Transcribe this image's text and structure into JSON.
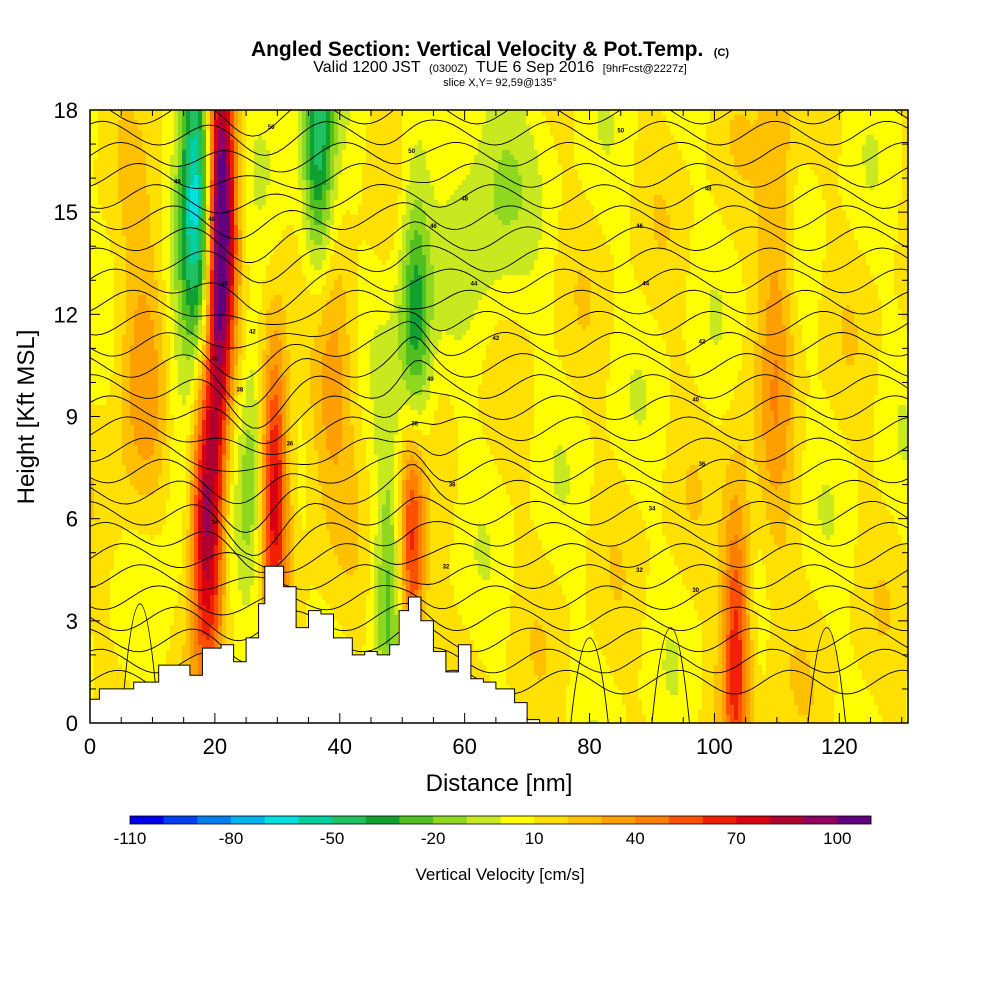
{
  "header": {
    "title": "Angled Section: Vertical Velocity & Pot.Temp.",
    "title_units": "(C)",
    "valid_prefix": "Valid 1200 JST",
    "valid_utc": "(0300Z)",
    "valid_date": "TUE 6 Sep 2016",
    "forecast": "[9hrFcst@2227z]",
    "slice": "slice X,Y= 92,59@135°"
  },
  "chart_data": {
    "type": "heatmap",
    "xlabel": "Distance [nm]",
    "ylabel": "Height [Kft MSL]",
    "xlim": [
      0,
      131
    ],
    "ylim": [
      0,
      18
    ],
    "x_ticks": [
      0,
      20,
      40,
      60,
      80,
      100,
      120
    ],
    "y_ticks": [
      0,
      3,
      6,
      9,
      12,
      15,
      18
    ],
    "colorbar": {
      "label": "Vertical Velocity [cm/s]",
      "range": [
        -110,
        110
      ],
      "step": 10,
      "tick_labels": [
        -110,
        -80,
        -50,
        -20,
        10,
        40,
        70,
        100
      ],
      "colors": [
        "#0000f0",
        "#0040f0",
        "#0080f0",
        "#00b4f0",
        "#00e0e0",
        "#00d0a0",
        "#20c060",
        "#10a030",
        "#50c020",
        "#90d820",
        "#c8e820",
        "#ffff00",
        "#ffe000",
        "#ffc000",
        "#ffa000",
        "#ff8000",
        "#ff5000",
        "#f02000",
        "#d80010",
        "#b00030",
        "#900060",
        "#600080"
      ]
    },
    "updrafts": [
      {
        "x": 18.5,
        "y": 6,
        "value": 80
      },
      {
        "x": 21.5,
        "y": 15,
        "value": 75
      },
      {
        "x": 29.5,
        "y": 7,
        "value": 70
      },
      {
        "x": 51.5,
        "y": 5.5,
        "value": 70
      },
      {
        "x": 103.5,
        "y": 2.5,
        "value": 60
      }
    ],
    "downdrafts": [
      {
        "x": 17,
        "y": 16,
        "value": -70
      },
      {
        "x": 36.5,
        "y": 17,
        "value": -55
      },
      {
        "x": 52,
        "y": 11,
        "value": -55
      },
      {
        "x": 26,
        "y": 7.5,
        "value": -30
      },
      {
        "x": 48,
        "y": 4,
        "value": -30
      }
    ],
    "theta_contour_labels": [
      {
        "x": 29,
        "y": 17.5,
        "text": "50"
      },
      {
        "x": 14,
        "y": 15.9,
        "text": "48"
      },
      {
        "x": 19.5,
        "y": 14.8,
        "text": "48"
      },
      {
        "x": 51.5,
        "y": 16.8,
        "text": "50"
      },
      {
        "x": 85,
        "y": 17.4,
        "text": "50"
      },
      {
        "x": 60,
        "y": 15.4,
        "text": "48"
      },
      {
        "x": 99,
        "y": 15.7,
        "text": "48"
      },
      {
        "x": 55,
        "y": 14.6,
        "text": "46"
      },
      {
        "x": 88,
        "y": 14.6,
        "text": "46"
      },
      {
        "x": 21.5,
        "y": 12.9,
        "text": "44"
      },
      {
        "x": 61.5,
        "y": 12.9,
        "text": "44"
      },
      {
        "x": 89,
        "y": 12.9,
        "text": "44"
      },
      {
        "x": 26,
        "y": 11.5,
        "text": "42"
      },
      {
        "x": 65,
        "y": 11.3,
        "text": "42"
      },
      {
        "x": 98,
        "y": 11.2,
        "text": "42"
      },
      {
        "x": 20,
        "y": 10.7,
        "text": "40"
      },
      {
        "x": 54.5,
        "y": 10.1,
        "text": "40"
      },
      {
        "x": 97,
        "y": 9.5,
        "text": "40"
      },
      {
        "x": 24,
        "y": 9.8,
        "text": "38"
      },
      {
        "x": 52,
        "y": 8.8,
        "text": "38"
      },
      {
        "x": 32,
        "y": 8.2,
        "text": "36"
      },
      {
        "x": 98,
        "y": 7.6,
        "text": "36"
      },
      {
        "x": 58,
        "y": 7.0,
        "text": "36"
      },
      {
        "x": 20,
        "y": 5.9,
        "text": "34"
      },
      {
        "x": 90,
        "y": 6.3,
        "text": "34"
      },
      {
        "x": 57,
        "y": 4.6,
        "text": "32"
      },
      {
        "x": 88,
        "y": 4.5,
        "text": "32"
      },
      {
        "x": 97,
        "y": 3.9,
        "text": "30"
      }
    ]
  }
}
